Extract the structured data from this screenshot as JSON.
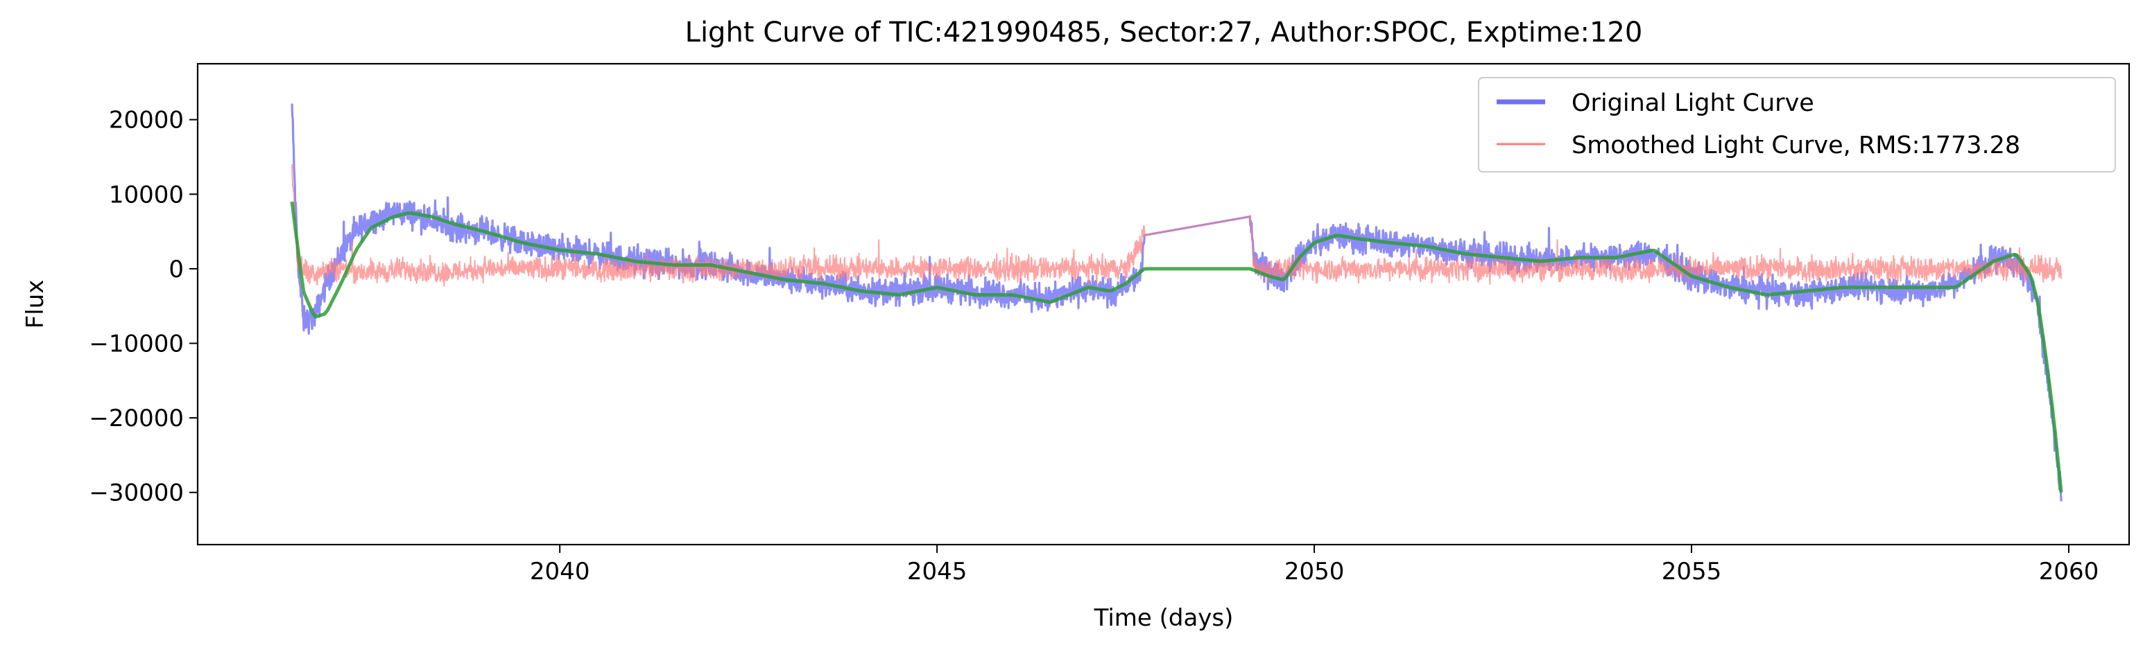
{
  "chart_data": {
    "type": "line",
    "title": "Light Curve of TIC:421990485, Sector:27, Author:SPOC, Exptime:120",
    "xlabel": "Time (days)",
    "ylabel": "Flux",
    "xlim": [
      2035.2,
      2060.8
    ],
    "ylim": [
      -37000,
      27500
    ],
    "xticks": [
      2040,
      2045,
      2050,
      2055,
      2060
    ],
    "xtick_labels": [
      "2040",
      "2045",
      "2050",
      "2055",
      "2060"
    ],
    "yticks": [
      20000,
      10000,
      0,
      -10000,
      -20000,
      -30000
    ],
    "ytick_labels": [
      "20000",
      "10000",
      "0",
      "−10000",
      "−20000",
      "−30000"
    ],
    "grid": false,
    "legend_position": "top-right",
    "legend": [
      {
        "label": "Original Light Curve",
        "color": "#6f6ff5"
      },
      {
        "label": "Smoothed Light Curve, RMS:1773.28",
        "color": "#ff7a7a"
      }
    ],
    "series": [
      {
        "name": "Original Light Curve",
        "color": "#6f6ff5",
        "noise_amplitude": 2600,
        "x": [
          2036.45,
          2036.52,
          2036.6,
          2036.75,
          2036.9,
          2037.1,
          2037.3,
          2037.5,
          2037.8,
          2038.0,
          2038.3,
          2038.6,
          2039.0,
          2039.5,
          2040.0,
          2040.5,
          2041.0,
          2041.5,
          2042.0,
          2042.5,
          2043.0,
          2043.5,
          2044.0,
          2044.5,
          2045.0,
          2045.5,
          2046.0,
          2046.5,
          2047.0,
          2047.3,
          2047.5,
          2047.7,
          2047.75,
          2049.15,
          2049.2,
          2049.4,
          2049.6,
          2049.8,
          2050.0,
          2050.3,
          2050.6,
          2051.0,
          2051.5,
          2052.0,
          2052.5,
          2053.0,
          2053.5,
          2054.0,
          2054.5,
          2055.0,
          2055.5,
          2056.0,
          2056.5,
          2057.0,
          2057.5,
          2058.0,
          2058.5,
          2059.0,
          2059.3,
          2059.5,
          2059.6,
          2059.7,
          2059.75,
          2059.8,
          2059.85,
          2059.9
        ],
        "y": [
          22000,
          2000,
          -7000,
          -6500,
          -2000,
          2000,
          5000,
          6500,
          7500,
          7500,
          6500,
          5500,
          5000,
          3500,
          2500,
          2000,
          1000,
          500,
          500,
          -500,
          -1500,
          -2000,
          -3000,
          -3000,
          -2500,
          -3000,
          -3500,
          -4000,
          -2500,
          -3500,
          -2000,
          -1000,
          4500,
          7000,
          1000,
          -500,
          -1500,
          1500,
          3500,
          4500,
          4000,
          3500,
          3000,
          2000,
          1500,
          1000,
          1500,
          1500,
          2000,
          -1000,
          -2500,
          -3000,
          -3500,
          -2500,
          -2500,
          -3000,
          -2000,
          1500,
          1000,
          -2000,
          -6000,
          -13000,
          -17000,
          -21000,
          -26000,
          -31000
        ]
      },
      {
        "name": "Smoothed Light Curve, RMS:1773.28",
        "color": "#ff7a7a",
        "noise_amplitude": 2300,
        "x": [
          2036.45,
          2036.52,
          2036.6,
          2036.75,
          2036.9,
          2037.1,
          2037.5,
          2038.0,
          2038.5,
          2039.0,
          2039.5,
          2040.0,
          2040.5,
          2041.0,
          2041.5,
          2042.0,
          2042.5,
          2043.0,
          2043.5,
          2044.0,
          2044.5,
          2045.0,
          2045.5,
          2046.0,
          2046.5,
          2047.0,
          2047.5,
          2047.75,
          2049.15,
          2049.2,
          2049.5,
          2050.0,
          2050.5,
          2051.0,
          2051.5,
          2052.0,
          2052.5,
          2053.0,
          2053.5,
          2054.0,
          2054.5,
          2055.0,
          2055.5,
          2056.0,
          2056.5,
          2057.0,
          2057.5,
          2058.0,
          2058.5,
          2059.0,
          2059.5,
          2059.7,
          2059.9
        ],
        "y": [
          14000,
          1000,
          0,
          -500,
          0,
          0,
          -500,
          0,
          -500,
          0,
          0,
          0,
          0,
          0,
          0,
          0,
          0,
          0,
          0,
          0,
          0,
          0,
          0,
          0,
          0,
          0,
          0,
          4500,
          7000,
          0,
          0,
          0,
          0,
          0,
          0,
          0,
          0,
          0,
          0,
          0,
          0,
          0,
          0,
          0,
          0,
          0,
          0,
          0,
          0,
          0,
          0,
          0,
          0
        ]
      },
      {
        "color": "#2e9c35",
        "x": [
          2036.45,
          2036.6,
          2036.75,
          2036.9,
          2037.1,
          2037.3,
          2037.5,
          2037.8,
          2038.0,
          2038.3,
          2038.6,
          2039.0,
          2039.5,
          2040.0,
          2040.5,
          2041.0,
          2041.5,
          2042.0,
          2042.5,
          2043.0,
          2043.5,
          2044.0,
          2044.5,
          2045.0,
          2045.5,
          2046.0,
          2046.5,
          2047.0,
          2047.3,
          2047.5,
          2047.75,
          2048.5,
          2049.15,
          2049.4,
          2049.6,
          2049.8,
          2050.0,
          2050.3,
          2050.6,
          2051.0,
          2051.5,
          2052.0,
          2052.5,
          2053.0,
          2053.5,
          2054.0,
          2054.5,
          2055.0,
          2055.5,
          2056.0,
          2056.5,
          2057.0,
          2057.5,
          2058.0,
          2058.5,
          2059.0,
          2059.3,
          2059.5,
          2059.6,
          2059.7,
          2059.8,
          2059.9
        ],
        "y": [
          9000,
          -3000,
          -6500,
          -6000,
          -2000,
          2500,
          5500,
          7000,
          7500,
          7000,
          6000,
          5000,
          3500,
          2500,
          2000,
          1000,
          500,
          500,
          -500,
          -1500,
          -2000,
          -3000,
          -3500,
          -2500,
          -3500,
          -3500,
          -4500,
          -2500,
          -3000,
          -2000,
          0,
          0,
          0,
          -1000,
          -1500,
          1500,
          3500,
          4500,
          4000,
          3500,
          3000,
          2000,
          1500,
          1000,
          1500,
          1500,
          2500,
          -1000,
          -2500,
          -3500,
          -3000,
          -2500,
          -2500,
          -2500,
          -2500,
          1000,
          2000,
          -1000,
          -5000,
          -12000,
          -20000,
          -30000
        ]
      }
    ]
  }
}
